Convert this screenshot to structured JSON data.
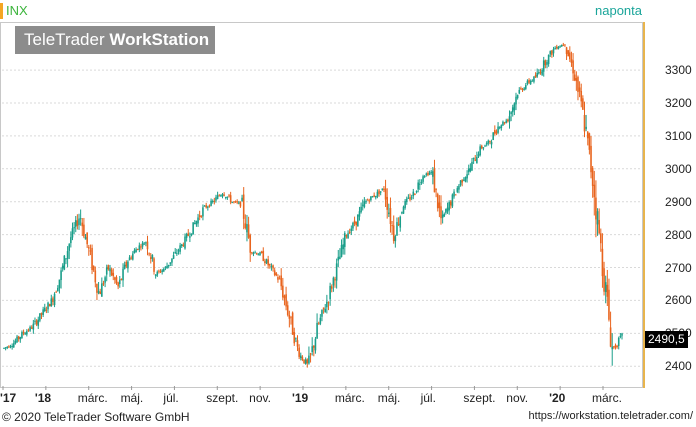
{
  "header": {
    "symbol": "INX",
    "period": "naponta"
  },
  "logo": {
    "part1": "TeleTrader ",
    "part2": "WorkStation"
  },
  "colors": {
    "up": "#1a9e8a",
    "down": "#e8641e",
    "axis_border": "#e8b44c",
    "grid": "#d9d9d9"
  },
  "last_price_label": "2490,5",
  "footer": {
    "copyright": "© 2020 TeleTrader Software GmbH",
    "url": "https://workstation.teletrader.com/"
  },
  "chart_data": {
    "type": "candlestick",
    "ylim": [
      2340,
      3440
    ],
    "y_ticks": [
      "2400",
      "2500",
      "2600",
      "2700",
      "2800",
      "2900",
      "3000",
      "3100",
      "3200",
      "3300"
    ],
    "x_ticks": [
      "'17",
      "'18",
      "márc.",
      "máj.",
      "júl.",
      "szept.",
      "nov.",
      "'19",
      "márc.",
      "máj.",
      "júl.",
      "szept.",
      "nov.",
      "'20",
      "márc."
    ],
    "series": [
      {
        "values": [
          2455,
          2470,
          2500,
          2520,
          2560,
          2600,
          2680,
          2790,
          2860,
          2740,
          2620,
          2700,
          2640,
          2720,
          2760,
          2780,
          2680,
          2700,
          2740,
          2780,
          2830,
          2880,
          2900,
          2930,
          2900,
          2890,
          2750,
          2740,
          2700,
          2660,
          2550,
          2440,
          2400,
          2520,
          2600,
          2700,
          2800,
          2840,
          2900,
          2920,
          2940,
          2800,
          2890,
          2920,
          2980,
          2990,
          2840,
          2900,
          2960,
          3000,
          3060,
          3080,
          3130,
          3150,
          3230,
          3260,
          3280,
          3330,
          3370,
          3380,
          3290,
          3150,
          2950,
          2700,
          2450,
          2490
        ]
      }
    ]
  }
}
